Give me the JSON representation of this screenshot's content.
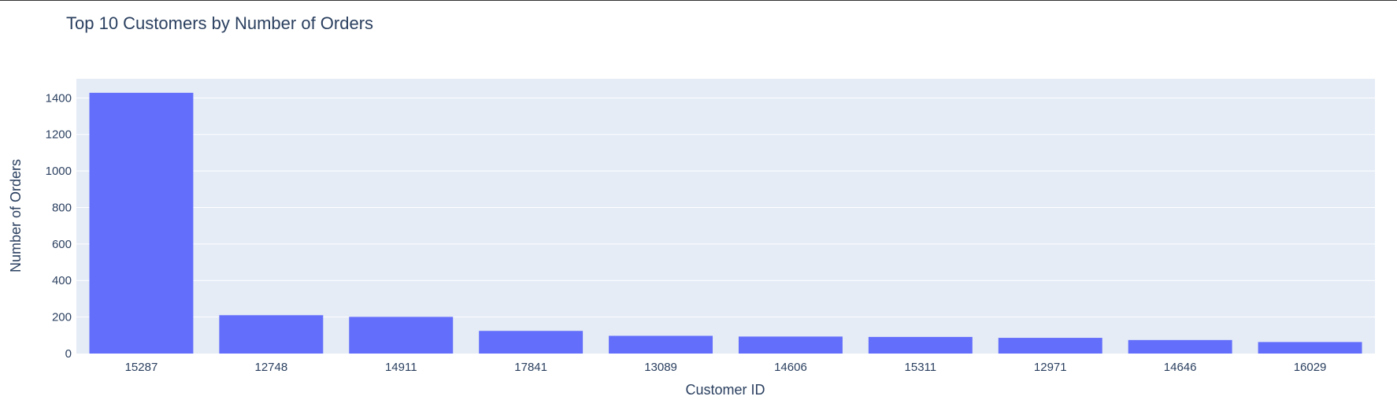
{
  "chart_data": {
    "type": "bar",
    "title": "Top 10 Customers by Number of Orders",
    "xlabel": "Customer ID",
    "ylabel": "Number of Orders",
    "categories": [
      "15287",
      "12748",
      "14911",
      "17841",
      "13089",
      "14606",
      "15311",
      "12971",
      "14646",
      "16029"
    ],
    "values": [
      1428,
      210,
      201,
      124,
      97,
      93,
      91,
      86,
      74,
      63
    ],
    "ylim": [
      0,
      1505
    ],
    "yticks": [
      0,
      200,
      400,
      600,
      800,
      1000,
      1200,
      1400
    ],
    "grid": true,
    "colors": {
      "bar": "#636efa",
      "plot_bg": "#e5ecf6",
      "text": "#2a3f5f",
      "grid": "#ffffff"
    }
  }
}
